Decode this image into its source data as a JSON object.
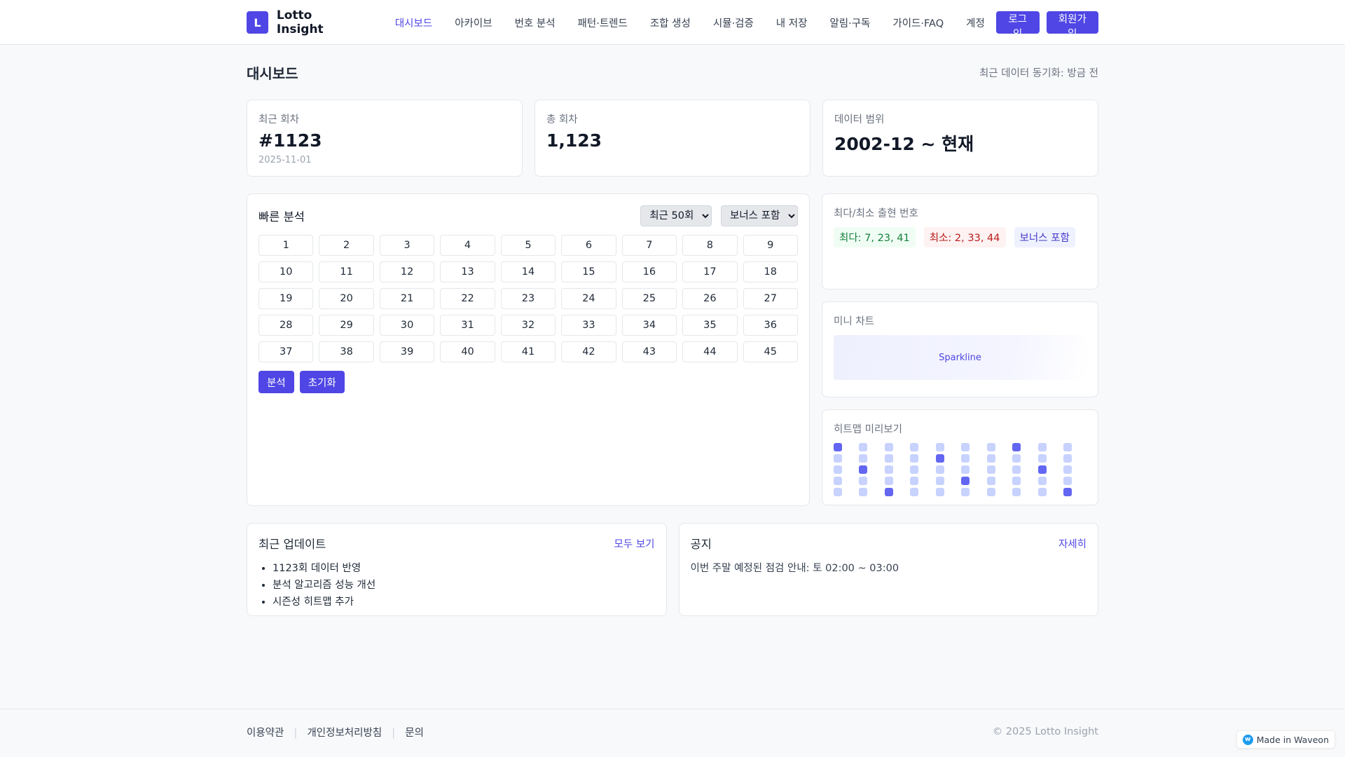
{
  "header": {
    "logo": "L",
    "brand": "Lotto Insight",
    "nav": [
      "대시보드",
      "아카이브",
      "번호 분석",
      "패턴·트렌드",
      "조합 생성",
      "시뮬·검증",
      "내 저장",
      "알림·구독",
      "가이드·FAQ",
      "계정"
    ],
    "login": "로그인",
    "signup": "회원가입"
  },
  "page": {
    "title": "대시보드",
    "sync": "최근 데이터 동기화: 방금 전"
  },
  "stats": [
    {
      "label": "최근 회차",
      "value": "#1123",
      "sub": "2025-11-01"
    },
    {
      "label": "총 회차",
      "value": "1,123"
    },
    {
      "label": "데이터 범위",
      "value": "2002-12 ~ 현재"
    }
  ],
  "quick": {
    "title": "빠른 분석",
    "range": "최근 50회",
    "bonus": "보너스 포함",
    "numbers": [
      1,
      2,
      3,
      4,
      5,
      6,
      7,
      8,
      9,
      10,
      11,
      12,
      13,
      14,
      15,
      16,
      17,
      18,
      19,
      20,
      21,
      22,
      23,
      24,
      25,
      26,
      27,
      28,
      29,
      30,
      31,
      32,
      33,
      34,
      35,
      36,
      37,
      38,
      39,
      40,
      41,
      42,
      43,
      44,
      45
    ],
    "analyze": "분석",
    "reset": "초기화"
  },
  "extremes": {
    "title": "최다/최소 출현 번호",
    "max": "최다: 7, 23, 41",
    "min": "최소: 2, 33, 44",
    "bonus": "보너스 포함",
    "colors": {
      "max_bg": "#f0fdf4",
      "max_fg": "#15803d",
      "min_bg": "#fef2f2",
      "min_fg": "#b91c1c",
      "bonus_bg": "#eef2ff",
      "bonus_fg": "#4338ca"
    }
  },
  "mini_chart": {
    "title": "미니 차트",
    "placeholder": "Sparkline"
  },
  "heatmap": {
    "title": "히트맵 미리보기",
    "rows": [
      [
        1,
        0,
        0,
        0,
        0,
        0,
        0,
        1,
        0,
        0
      ],
      [
        0,
        0,
        0,
        0,
        1,
        0,
        0,
        0,
        0,
        0
      ],
      [
        0,
        1,
        0,
        0,
        0,
        0,
        0,
        0,
        1,
        0
      ],
      [
        0,
        0,
        0,
        0,
        0,
        1,
        0,
        0,
        0,
        0
      ],
      [
        0,
        0,
        1,
        0,
        0,
        0,
        0,
        0,
        0,
        1
      ]
    ],
    "colors": {
      "on": "#6366f1",
      "off": "#c7d2fe"
    }
  },
  "updates": {
    "title": "최근 업데이트",
    "link": "모두 보기",
    "items": [
      "1123회 데이터 반영",
      "분석 알고리즘 성능 개선",
      "시즌성 히트맵 추가"
    ]
  },
  "notice": {
    "title": "공지",
    "link": "자세히",
    "text": "이번 주말 예정된 점검 안내: 토 02:00 ~ 03:00"
  },
  "footer": {
    "links": [
      "이용약관",
      "개인정보처리방침",
      "문의"
    ],
    "copyright": "© 2025 Lotto Insight"
  },
  "badge": {
    "icon": "w",
    "text": "Made in Waveon"
  },
  "accent": "#4f46e5"
}
